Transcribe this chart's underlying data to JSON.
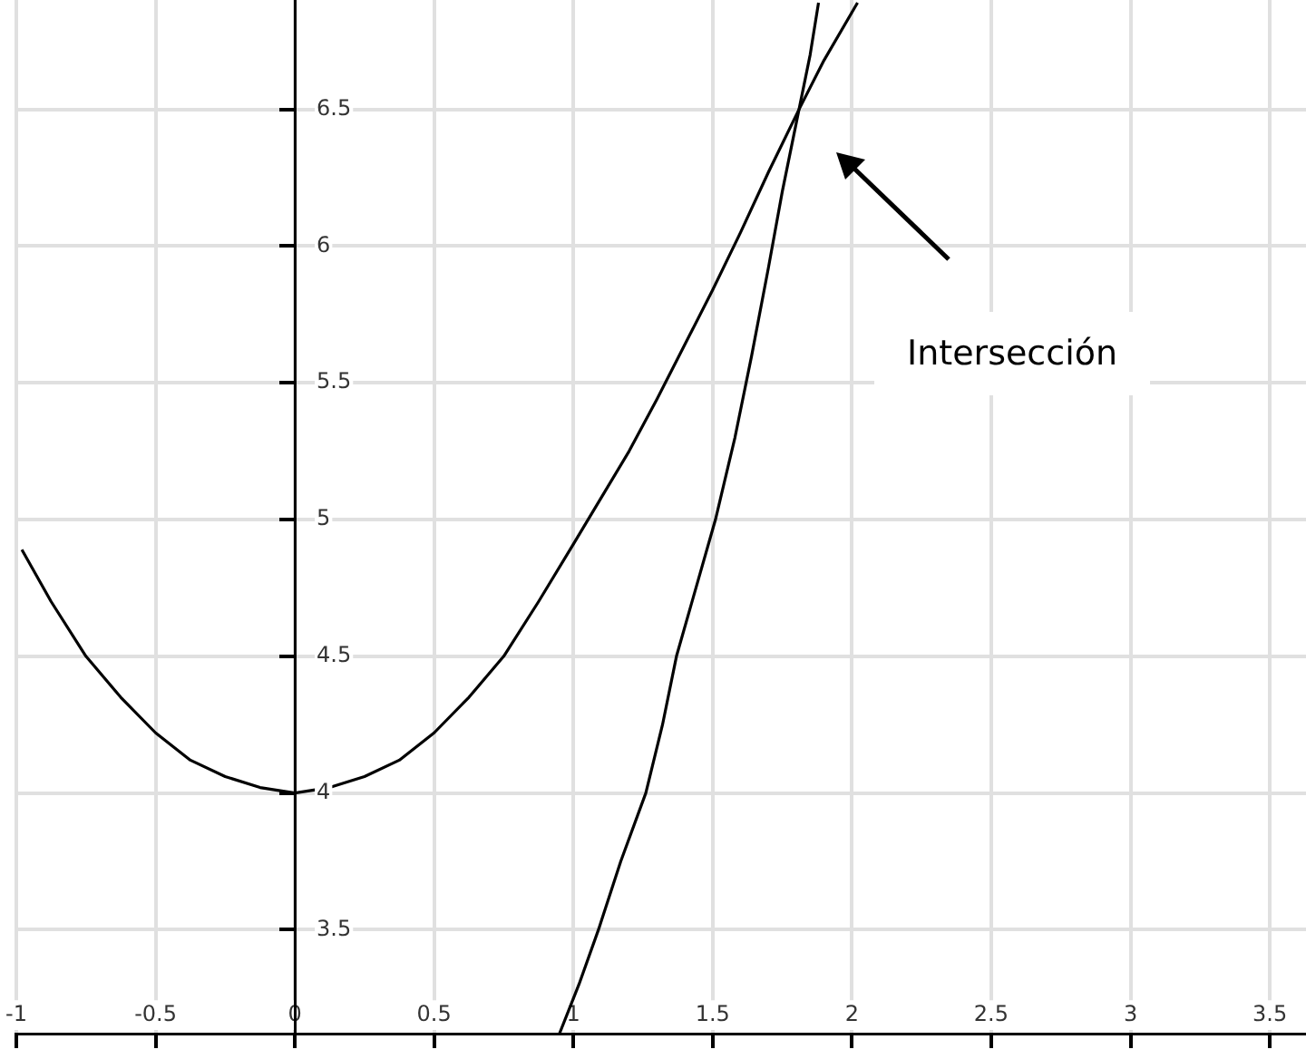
{
  "chart_data": {
    "type": "line",
    "annotations": [
      "Intersección"
    ],
    "series": [
      {
        "color": "#000000",
        "x": [
          -0.98,
          -0.875,
          -0.75,
          -0.625,
          -0.5,
          -0.375,
          -0.25,
          -0.125,
          0,
          0.125,
          0.25,
          0.375,
          0.5,
          0.625,
          0.75,
          0.875,
          1,
          1.1,
          1.2,
          1.3,
          1.4,
          1.5,
          1.6,
          1.7,
          1.81,
          1.9,
          2.02
        ],
        "values": [
          4.89,
          4.7,
          4.5,
          4.35,
          4.22,
          4.12,
          4.06,
          4.02,
          4,
          4.02,
          4.06,
          4.12,
          4.22,
          4.35,
          4.5,
          4.7,
          4.91,
          5.08,
          5.25,
          5.44,
          5.64,
          5.84,
          6.05,
          6.27,
          6.5,
          6.68,
          6.89
        ]
      },
      {
        "color": "#000000",
        "x": [
          0.95,
          1.02,
          1.09,
          1.17,
          1.26,
          1.32,
          1.37,
          1.44,
          1.51,
          1.58,
          1.64,
          1.7,
          1.75,
          1.81,
          1.85,
          1.88
        ],
        "values": [
          3.12,
          3.3,
          3.5,
          3.75,
          4,
          4.25,
          4.5,
          4.75,
          5,
          5.3,
          5.6,
          5.92,
          6.2,
          6.5,
          6.7,
          6.89
        ]
      }
    ],
    "xlim": [
      -1,
      3.63
    ],
    "ylim": [
      3.12,
      6.9
    ],
    "xticks": [
      -1,
      -0.5,
      0,
      0.5,
      1,
      1.5,
      2,
      2.5,
      3,
      3.5
    ],
    "yticks": [
      3.5,
      4,
      4.5,
      5,
      5.5,
      6,
      6.5
    ],
    "grid": true,
    "legend": false,
    "marker": "none",
    "line_style": "solid"
  }
}
